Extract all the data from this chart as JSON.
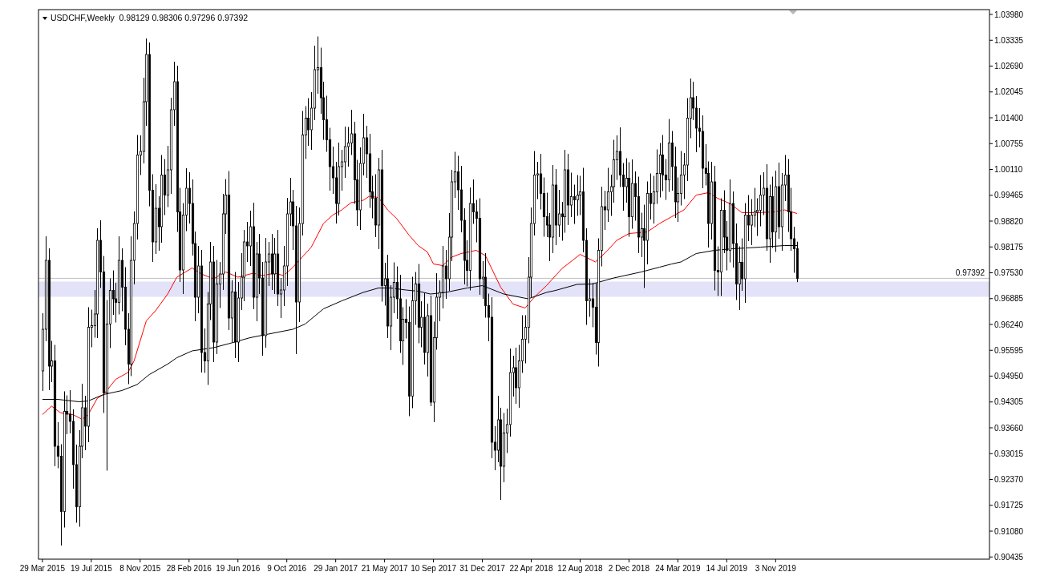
{
  "chart_data": {
    "type": "candlestick",
    "title": "USDCHF,Weekly  0.98129 0.98306 0.97296 0.97392",
    "x": [
      "2015-03-29",
      "2015-04-05",
      "2015-04-12",
      "2015-04-19",
      "2015-04-26",
      "2015-05-03",
      "2015-05-10",
      "2015-05-17",
      "2015-05-24",
      "2015-05-31",
      "2015-06-07",
      "2015-06-14",
      "2015-06-21",
      "2015-06-28",
      "2015-07-05",
      "2015-07-12",
      "2015-07-19",
      "2015-07-26",
      "2015-08-02",
      "2015-08-09",
      "2015-08-16",
      "2015-08-23",
      "2015-08-30",
      "2015-09-06",
      "2015-09-13",
      "2015-09-20",
      "2015-09-27",
      "2015-10-04",
      "2015-10-11",
      "2015-10-18",
      "2015-10-25",
      "2015-11-01",
      "2015-11-08",
      "2015-11-15",
      "2015-11-22",
      "2015-11-29",
      "2015-12-06",
      "2015-12-13",
      "2015-12-20",
      "2015-12-27",
      "2016-01-03",
      "2016-01-10",
      "2016-01-17",
      "2016-01-24",
      "2016-01-31",
      "2016-02-07",
      "2016-02-14",
      "2016-02-21",
      "2016-02-28",
      "2016-03-06",
      "2016-03-13",
      "2016-03-20",
      "2016-03-27",
      "2016-04-03",
      "2016-04-10",
      "2016-04-17",
      "2016-04-24",
      "2016-05-01",
      "2016-05-08",
      "2016-05-15",
      "2016-05-22",
      "2016-05-29",
      "2016-06-05",
      "2016-06-12",
      "2016-06-19",
      "2016-06-26",
      "2016-07-03",
      "2016-07-10",
      "2016-07-17",
      "2016-07-24",
      "2016-07-31",
      "2016-08-07",
      "2016-08-14",
      "2016-08-21",
      "2016-08-28",
      "2016-09-04",
      "2016-09-11",
      "2016-09-18",
      "2016-09-25",
      "2016-10-02",
      "2016-10-09",
      "2016-10-16",
      "2016-10-23",
      "2016-10-30",
      "2016-11-06",
      "2016-11-13",
      "2016-11-20",
      "2016-11-27",
      "2016-12-04",
      "2016-12-11",
      "2016-12-18",
      "2016-12-25",
      "2017-01-01",
      "2017-01-08",
      "2017-01-15",
      "2017-01-22",
      "2017-01-29",
      "2017-02-05",
      "2017-02-12",
      "2017-02-19",
      "2017-02-26",
      "2017-03-05",
      "2017-03-12",
      "2017-03-19",
      "2017-03-26",
      "2017-04-02",
      "2017-04-09",
      "2017-04-16",
      "2017-04-23",
      "2017-04-30",
      "2017-05-07",
      "2017-05-14",
      "2017-05-21",
      "2017-05-28",
      "2017-06-04",
      "2017-06-11",
      "2017-06-18",
      "2017-06-25",
      "2017-07-02",
      "2017-07-09",
      "2017-07-16",
      "2017-07-23",
      "2017-07-30",
      "2017-08-06",
      "2017-08-13",
      "2017-08-20",
      "2017-08-27",
      "2017-09-03",
      "2017-09-10",
      "2017-09-17",
      "2017-09-24",
      "2017-10-01",
      "2017-10-08",
      "2017-10-15",
      "2017-10-22",
      "2017-10-29",
      "2017-11-05",
      "2017-11-12",
      "2017-11-19",
      "2017-11-26",
      "2017-12-03",
      "2017-12-10",
      "2017-12-17",
      "2017-12-24",
      "2017-12-31",
      "2018-01-07",
      "2018-01-14",
      "2018-01-21",
      "2018-01-28",
      "2018-02-04",
      "2018-02-11",
      "2018-02-18",
      "2018-02-25",
      "2018-03-04",
      "2018-03-11",
      "2018-03-18",
      "2018-03-25",
      "2018-04-01",
      "2018-04-08",
      "2018-04-15",
      "2018-04-22",
      "2018-04-29",
      "2018-05-06",
      "2018-05-13",
      "2018-05-20",
      "2018-05-27",
      "2018-06-03",
      "2018-06-10",
      "2018-06-17",
      "2018-06-24",
      "2018-07-01",
      "2018-07-08",
      "2018-07-15",
      "2018-07-22",
      "2018-07-29",
      "2018-08-05",
      "2018-08-12",
      "2018-08-19",
      "2018-08-26",
      "2018-09-02",
      "2018-09-09",
      "2018-09-16",
      "2018-09-23",
      "2018-09-30",
      "2018-10-07",
      "2018-10-14",
      "2018-10-21",
      "2018-10-28",
      "2018-11-04",
      "2018-11-11",
      "2018-11-18",
      "2018-11-25",
      "2018-12-02",
      "2018-12-09",
      "2018-12-16",
      "2018-12-23",
      "2018-12-30",
      "2019-01-06",
      "2019-01-13",
      "2019-01-20",
      "2019-01-27",
      "2019-02-03",
      "2019-02-10",
      "2019-02-17",
      "2019-02-24",
      "2019-03-03",
      "2019-03-10",
      "2019-03-17",
      "2019-03-24",
      "2019-03-31",
      "2019-04-07",
      "2019-04-14",
      "2019-04-21",
      "2019-04-28",
      "2019-05-05",
      "2019-05-12",
      "2019-05-19",
      "2019-05-26",
      "2019-06-02",
      "2019-06-09",
      "2019-06-16",
      "2019-06-23",
      "2019-06-30",
      "2019-07-07",
      "2019-07-14",
      "2019-07-21",
      "2019-07-28",
      "2019-08-04",
      "2019-08-11",
      "2019-08-18",
      "2019-08-25",
      "2019-09-01",
      "2019-09-08",
      "2019-09-15",
      "2019-09-22",
      "2019-09-29",
      "2019-10-06",
      "2019-10-13",
      "2019-10-20",
      "2019-10-27",
      "2019-11-03",
      "2019-11-10",
      "2019-11-17",
      "2019-11-24",
      "2019-12-01",
      "2019-12-08",
      "2019-12-15",
      "2019-12-22"
    ],
    "ohlc": [
      [
        0.9508,
        0.9652,
        0.9458,
        0.9612
      ],
      [
        0.9612,
        0.9844,
        0.9582,
        0.9784
      ],
      [
        0.9784,
        0.9814,
        0.946,
        0.952
      ],
      [
        0.952,
        0.9583,
        0.948,
        0.9533
      ],
      [
        0.9533,
        0.9573,
        0.927,
        0.932
      ],
      [
        0.932,
        0.938,
        0.9265,
        0.9295
      ],
      [
        0.9295,
        0.9325,
        0.9072,
        0.9157
      ],
      [
        0.9157,
        0.9457,
        0.9117,
        0.9407
      ],
      [
        0.9407,
        0.9447,
        0.935,
        0.94
      ],
      [
        0.94,
        0.946,
        0.9352,
        0.9382
      ],
      [
        0.9382,
        0.9412,
        0.9214,
        0.9274
      ],
      [
        0.9274,
        0.9324,
        0.9129,
        0.9169
      ],
      [
        0.9169,
        0.936,
        0.9119,
        0.932
      ],
      [
        0.932,
        0.9476,
        0.929,
        0.9416
      ],
      [
        0.9416,
        0.9446,
        0.931,
        0.937
      ],
      [
        0.937,
        0.9667,
        0.933,
        0.9617
      ],
      [
        0.9617,
        0.9661,
        0.9567,
        0.9621
      ],
      [
        0.9621,
        0.971,
        0.9591,
        0.965
      ],
      [
        0.965,
        0.9864,
        0.959,
        0.9834
      ],
      [
        0.9834,
        0.9884,
        0.9715,
        0.9755
      ],
      [
        0.9755,
        0.9795,
        0.9403,
        0.9453
      ],
      [
        0.9453,
        0.9685,
        0.9259,
        0.9625
      ],
      [
        0.9625,
        0.9739,
        0.9565,
        0.9709
      ],
      [
        0.9709,
        0.9759,
        0.9648,
        0.9688
      ],
      [
        0.9688,
        0.9728,
        0.9629,
        0.9679
      ],
      [
        0.9679,
        0.9844,
        0.9649,
        0.9784
      ],
      [
        0.9784,
        0.9814,
        0.9657,
        0.9717
      ],
      [
        0.9717,
        0.9767,
        0.9572,
        0.9612
      ],
      [
        0.9612,
        0.9652,
        0.9475,
        0.9525
      ],
      [
        0.9525,
        0.9844,
        0.9495,
        0.9784
      ],
      [
        0.9784,
        0.9906,
        0.9724,
        0.9876
      ],
      [
        0.9876,
        1.0097,
        0.9836,
        1.0047
      ],
      [
        1.0047,
        1.0096,
        0.9997,
        1.0056
      ],
      [
        1.0056,
        1.024,
        1.0026,
        1.018
      ],
      [
        1.018,
        1.0338,
        1.012,
        1.0298
      ],
      [
        1.0298,
        1.0328,
        0.9919,
        0.9959
      ],
      [
        0.9959,
        0.9999,
        0.978,
        0.983
      ],
      [
        0.983,
        0.9974,
        0.98,
        0.9914
      ],
      [
        0.9914,
        0.9944,
        0.9808,
        0.9868
      ],
      [
        0.9868,
        1.0047,
        0.9828,
        0.9997
      ],
      [
        0.9997,
        1.0037,
        0.9897,
        0.9947
      ],
      [
        0.9947,
        1.007,
        0.9917,
        1.001
      ],
      [
        1.001,
        1.019,
        0.995,
        1.016
      ],
      [
        1.016,
        1.028,
        1.012,
        1.023
      ],
      [
        1.023,
        1.027,
        0.9855,
        0.9905
      ],
      [
        0.9905,
        0.9965,
        0.973,
        0.976
      ],
      [
        0.976,
        0.9927,
        0.97,
        0.9897
      ],
      [
        0.9897,
        1.0014,
        0.9857,
        0.9964
      ],
      [
        0.9964,
        1.0004,
        0.9876,
        0.9926
      ],
      [
        0.9926,
        0.9986,
        0.9796,
        0.9826
      ],
      [
        0.9826,
        0.9856,
        0.9632,
        0.9692
      ],
      [
        0.9692,
        0.982,
        0.9652,
        0.977
      ],
      [
        0.977,
        0.981,
        0.9504,
        0.9554
      ],
      [
        0.9554,
        0.9614,
        0.9503,
        0.9533
      ],
      [
        0.9533,
        0.9705,
        0.9473,
        0.9675
      ],
      [
        0.9675,
        0.983,
        0.9635,
        0.978
      ],
      [
        0.978,
        0.982,
        0.953,
        0.958
      ],
      [
        0.958,
        0.9785,
        0.955,
        0.9725
      ],
      [
        0.9725,
        0.978,
        0.9665,
        0.975
      ],
      [
        0.975,
        0.995,
        0.971,
        0.99
      ],
      [
        0.99,
        0.9987,
        0.985,
        0.9947
      ],
      [
        0.9947,
        1.0007,
        0.961,
        0.964
      ],
      [
        0.964,
        0.9735,
        0.958,
        0.9705
      ],
      [
        0.9705,
        0.9755,
        0.954,
        0.958
      ],
      [
        0.958,
        0.973,
        0.953,
        0.969
      ],
      [
        0.969,
        0.9802,
        0.966,
        0.9742
      ],
      [
        0.9742,
        0.986,
        0.9682,
        0.983
      ],
      [
        0.983,
        0.988,
        0.978,
        0.982
      ],
      [
        0.982,
        0.9908,
        0.977,
        0.9868
      ],
      [
        0.9868,
        0.9928,
        0.9662,
        0.9692
      ],
      [
        0.9692,
        0.983,
        0.9632,
        0.98
      ],
      [
        0.98,
        0.985,
        0.97,
        0.974
      ],
      [
        0.974,
        0.978,
        0.9546,
        0.9596
      ],
      [
        0.9596,
        0.984,
        0.9566,
        0.978
      ],
      [
        0.978,
        0.983,
        0.972,
        0.98
      ],
      [
        0.98,
        0.985,
        0.971,
        0.975
      ],
      [
        0.975,
        0.984,
        0.97,
        0.98
      ],
      [
        0.98,
        0.986,
        0.967,
        0.97
      ],
      [
        0.97,
        0.974,
        0.964,
        0.971
      ],
      [
        0.971,
        0.982,
        0.967,
        0.977
      ],
      [
        0.977,
        0.994,
        0.972,
        0.99
      ],
      [
        0.99,
        0.999,
        0.987,
        0.993
      ],
      [
        0.993,
        0.996,
        0.981,
        0.987
      ],
      [
        0.987,
        0.992,
        0.955,
        0.968
      ],
      [
        0.968,
        0.9916,
        0.963,
        0.9876
      ],
      [
        0.9876,
        1.0157,
        0.9846,
        1.0097
      ],
      [
        1.0097,
        1.0169,
        1.0037,
        1.0139
      ],
      [
        1.0139,
        1.0189,
        1.007,
        1.011
      ],
      [
        1.011,
        1.0204,
        1.006,
        1.0164
      ],
      [
        1.0164,
        1.032,
        1.0134,
        1.026
      ],
      [
        1.026,
        1.0343,
        1.02,
        1.0265
      ],
      [
        1.0265,
        1.0315,
        1.015,
        1.019
      ],
      [
        1.019,
        1.023,
        1.0085,
        1.0135
      ],
      [
        1.0135,
        1.0195,
        1.0055,
        1.0085
      ],
      [
        1.0085,
        1.0115,
        0.9958,
        1.0018
      ],
      [
        1.0018,
        1.0068,
        0.995,
        0.999
      ],
      [
        0.999,
        1.003,
        0.9876,
        0.9926
      ],
      [
        0.9926,
        1.0078,
        0.9896,
        1.0018
      ],
      [
        1.0018,
        1.006,
        0.9958,
        1.003
      ],
      [
        1.003,
        1.0118,
        0.999,
        1.0068
      ],
      [
        1.0068,
        1.0117,
        1.0018,
        1.0077
      ],
      [
        1.0077,
        1.016,
        1.0047,
        1.01
      ],
      [
        1.01,
        1.013,
        0.9925,
        0.9985
      ],
      [
        0.9985,
        1.0035,
        0.987,
        0.991
      ],
      [
        0.991,
        1.0066,
        0.986,
        1.0026
      ],
      [
        1.0026,
        1.015,
        0.9996,
        1.009
      ],
      [
        1.009,
        1.012,
        0.999,
        1.005
      ],
      [
        1.005,
        1.01,
        0.9915,
        0.9955
      ],
      [
        0.9955,
        0.9995,
        0.9889,
        0.9939
      ],
      [
        0.9939,
        0.9999,
        0.9842,
        0.9872
      ],
      [
        0.9872,
        1.004,
        0.9812,
        1.001
      ],
      [
        1.001,
        1.006,
        0.9681,
        0.9721
      ],
      [
        0.9721,
        0.9778,
        0.9671,
        0.9738
      ],
      [
        0.9738,
        0.9798,
        0.959,
        0.962
      ],
      [
        0.962,
        0.9722,
        0.956,
        0.9692
      ],
      [
        0.9692,
        0.9779,
        0.9652,
        0.9729
      ],
      [
        0.9729,
        0.9769,
        0.9638,
        0.9688
      ],
      [
        0.9688,
        0.9748,
        0.9553,
        0.9583
      ],
      [
        0.9583,
        0.9667,
        0.9523,
        0.9637
      ],
      [
        0.9637,
        0.9687,
        0.9589,
        0.9629
      ],
      [
        0.9629,
        0.9669,
        0.9395,
        0.9445
      ],
      [
        0.9445,
        0.9743,
        0.9415,
        0.9683
      ],
      [
        0.9683,
        0.9755,
        0.9623,
        0.9725
      ],
      [
        0.9725,
        0.9775,
        0.9577,
        0.9617
      ],
      [
        0.9617,
        0.9682,
        0.9567,
        0.9642
      ],
      [
        0.9642,
        0.9702,
        0.9524,
        0.9554
      ],
      [
        0.9554,
        0.9676,
        0.9494,
        0.9646
      ],
      [
        0.9646,
        0.9696,
        0.942,
        0.943
      ],
      [
        0.943,
        0.9631,
        0.938,
        0.9591
      ],
      [
        0.9591,
        0.9752,
        0.9561,
        0.9692
      ],
      [
        0.9692,
        0.9734,
        0.9632,
        0.9704
      ],
      [
        0.9704,
        0.982,
        0.9664,
        0.977
      ],
      [
        0.977,
        0.981,
        0.9688,
        0.9738
      ],
      [
        0.9738,
        0.9902,
        0.9708,
        0.9842
      ],
      [
        0.9842,
        1.001,
        0.9782,
        0.998
      ],
      [
        0.998,
        1.0055,
        0.994,
        1.0005
      ],
      [
        1.0005,
        1.0045,
        0.991,
        0.996
      ],
      [
        0.996,
        1.002,
        0.9854,
        0.9884
      ],
      [
        0.9884,
        0.9914,
        0.9724,
        0.9784
      ],
      [
        0.9784,
        0.9834,
        0.9719,
        0.9759
      ],
      [
        0.9759,
        0.9966,
        0.9709,
        0.9926
      ],
      [
        0.9926,
        0.9986,
        0.9875,
        0.9905
      ],
      [
        0.9905,
        0.9935,
        0.9829,
        0.9889
      ],
      [
        0.9889,
        0.9939,
        0.9698,
        0.9738
      ],
      [
        0.9738,
        0.9782,
        0.9688,
        0.9742
      ],
      [
        0.9742,
        0.9802,
        0.9641,
        0.9671
      ],
      [
        0.9671,
        0.9701,
        0.9582,
        0.9642
      ],
      [
        0.9642,
        0.9692,
        0.929,
        0.933
      ],
      [
        0.933,
        0.937,
        0.926,
        0.931
      ],
      [
        0.931,
        0.9446,
        0.928,
        0.9386
      ],
      [
        0.9386,
        0.9416,
        0.9186,
        0.927
      ],
      [
        0.927,
        0.9403,
        0.923,
        0.9353
      ],
      [
        0.9353,
        0.9414,
        0.9303,
        0.9374
      ],
      [
        0.9374,
        0.9564,
        0.9344,
        0.9504
      ],
      [
        0.9504,
        0.9546,
        0.9444,
        0.9516
      ],
      [
        0.9516,
        0.9566,
        0.9426,
        0.9466
      ],
      [
        0.9466,
        0.9573,
        0.9416,
        0.9533
      ],
      [
        0.9533,
        0.9647,
        0.9503,
        0.9587
      ],
      [
        0.9587,
        0.9647,
        0.9527,
        0.9617
      ],
      [
        0.9617,
        0.9792,
        0.9577,
        0.9742
      ],
      [
        0.9742,
        0.9916,
        0.9692,
        0.9876
      ],
      [
        0.9876,
        1.0057,
        0.9846,
        0.9997
      ],
      [
        0.9997,
        1.003,
        0.9937,
        1.0
      ],
      [
        1.0,
        1.005,
        0.9911,
        0.9951
      ],
      [
        0.9951,
        0.9991,
        0.9843,
        0.9893
      ],
      [
        0.9893,
        0.9953,
        0.9842,
        0.9872
      ],
      [
        0.9872,
        0.9902,
        0.9782,
        0.9842
      ],
      [
        0.9842,
        1.0022,
        0.9802,
        0.9972
      ],
      [
        0.9972,
        1.0012,
        0.9822,
        0.9872
      ],
      [
        0.9872,
        0.996,
        0.9842,
        0.99
      ],
      [
        0.99,
        0.993,
        0.9833,
        0.9893
      ],
      [
        0.9893,
        1.006,
        0.9853,
        1.001
      ],
      [
        1.001,
        1.005,
        0.9872,
        0.9922
      ],
      [
        0.9922,
        1.0003,
        0.9892,
        0.9943
      ],
      [
        0.9943,
        0.9973,
        0.9875,
        0.9935
      ],
      [
        0.9935,
        0.9997,
        0.9895,
        0.9947
      ],
      [
        0.9947,
        0.9995,
        0.9897,
        0.9955
      ],
      [
        0.9955,
        1.0015,
        0.9804,
        0.9834
      ],
      [
        0.9834,
        0.9864,
        0.9623,
        0.9683
      ],
      [
        0.9683,
        0.9738,
        0.9643,
        0.9688
      ],
      [
        0.9688,
        0.9728,
        0.9617,
        0.9667
      ],
      [
        0.9667,
        0.9727,
        0.9549,
        0.9579
      ],
      [
        0.9579,
        0.9839,
        0.9519,
        0.9809
      ],
      [
        0.9809,
        0.9968,
        0.9769,
        0.9918
      ],
      [
        0.9918,
        0.9958,
        0.986,
        0.991
      ],
      [
        0.991,
        1.0015,
        0.988,
        0.9955
      ],
      [
        0.9955,
        0.9998,
        0.9895,
        0.9968
      ],
      [
        0.9968,
        1.0085,
        0.9928,
        1.0035
      ],
      [
        1.0035,
        1.0096,
        0.9985,
        1.0056
      ],
      [
        1.0056,
        1.0116,
        0.9967,
        0.9997
      ],
      [
        0.9997,
        1.0027,
        0.9908,
        0.9968
      ],
      [
        0.9968,
        1.0039,
        0.9928,
        0.9989
      ],
      [
        0.9989,
        1.0029,
        0.9843,
        0.9893
      ],
      [
        0.9893,
        1.0036,
        0.9863,
        0.9976
      ],
      [
        0.9976,
        1.0006,
        0.9883,
        0.9943
      ],
      [
        0.9943,
        0.9993,
        0.9802,
        0.9842
      ],
      [
        0.9842,
        0.9903,
        0.9792,
        0.9863
      ],
      [
        0.9863,
        0.9923,
        0.9715,
        0.9834
      ],
      [
        0.9834,
        0.9981,
        0.9774,
        0.9951
      ],
      [
        0.9951,
        1.0001,
        0.9886,
        0.9926
      ],
      [
        0.9926,
        0.9995,
        0.9876,
        0.9955
      ],
      [
        0.9955,
        1.0061,
        0.9925,
        1.0001
      ],
      [
        1.0001,
        1.0077,
        0.9941,
        1.0047
      ],
      [
        1.0047,
        1.0097,
        0.9957,
        0.9997
      ],
      [
        0.9997,
        1.0037,
        0.9935,
        0.9985
      ],
      [
        0.9985,
        1.0137,
        0.9955,
        1.0077
      ],
      [
        1.0077,
        1.0107,
        0.9958,
        1.0018
      ],
      [
        1.0018,
        1.0068,
        0.989,
        0.993
      ],
      [
        0.993,
        0.9991,
        0.988,
        0.9951
      ],
      [
        0.9951,
        1.0057,
        0.9921,
        0.9997
      ],
      [
        0.9997,
        1.0052,
        0.9937,
        1.0022
      ],
      [
        1.0022,
        1.0189,
        0.9982,
        1.0139
      ],
      [
        1.0139,
        1.0238,
        1.0089,
        1.019
      ],
      [
        1.019,
        1.023,
        1.0134,
        1.0164
      ],
      [
        1.0164,
        1.0194,
        1.0054,
        1.0114
      ],
      [
        1.0114,
        1.0164,
        1.0066,
        1.0106
      ],
      [
        1.0106,
        1.0146,
        0.9964,
        1.0014
      ],
      [
        1.0014,
        1.0074,
        0.9971,
        1.0001
      ],
      [
        1.0001,
        1.0031,
        0.9816,
        0.9876
      ],
      [
        0.9876,
        1.003,
        0.9836,
        0.998
      ],
      [
        0.998,
        1.002,
        0.9709,
        0.9759
      ],
      [
        0.9759,
        0.9819,
        0.9695,
        0.9755
      ],
      [
        0.9755,
        0.9939,
        0.9695,
        0.9909
      ],
      [
        0.9909,
        0.9959,
        0.9802,
        0.9842
      ],
      [
        0.9842,
        0.9882,
        0.9759,
        0.9809
      ],
      [
        0.9809,
        0.9986,
        0.9779,
        0.9926
      ],
      [
        0.9926,
        0.9956,
        0.9766,
        0.9826
      ],
      [
        0.9826,
        0.9876,
        0.9685,
        0.9725
      ],
      [
        0.9725,
        0.9819,
        0.966,
        0.9779
      ],
      [
        0.9779,
        0.9839,
        0.9708,
        0.9738
      ],
      [
        0.9738,
        0.9927,
        0.9678,
        0.9897
      ],
      [
        0.9897,
        0.9947,
        0.9832,
        0.9872
      ],
      [
        0.9872,
        0.9937,
        0.9822,
        0.9897
      ],
      [
        0.9897,
        0.9965,
        0.9867,
        0.9905
      ],
      [
        0.9905,
        0.9939,
        0.9845,
        0.9909
      ],
      [
        0.9909,
        0.9997,
        0.9869,
        0.9947
      ],
      [
        0.9947,
        1.0004,
        0.9897,
        0.9964
      ],
      [
        0.9964,
        1.0024,
        0.9808,
        0.9838
      ],
      [
        0.9838,
        0.9973,
        0.9778,
        0.9943
      ],
      [
        0.9943,
        0.9993,
        0.9815,
        0.9855
      ],
      [
        0.9855,
        1.0008,
        0.9805,
        0.9968
      ],
      [
        0.9968,
        1.0028,
        0.9838,
        0.9868
      ],
      [
        0.9868,
        1.0002,
        0.9808,
        0.9972
      ],
      [
        0.9972,
        1.0047,
        0.9932,
        0.9997
      ],
      [
        0.9997,
        1.0037,
        0.9855,
        0.9905
      ],
      [
        0.9905,
        0.9965,
        0.9808,
        0.9838
      ],
      [
        0.9838,
        0.9868,
        0.9753,
        0.98129
      ],
      [
        0.98129,
        0.98306,
        0.97296,
        0.97392
      ]
    ],
    "series": [
      {
        "type": "line",
        "color": "#ff0000",
        "x": [
          "2015-03-29",
          "2015-04-19",
          "2015-05-10",
          "2015-06-07",
          "2015-06-28",
          "2015-07-12",
          "2015-08-02",
          "2015-08-16",
          "2015-09-13",
          "2015-10-11",
          "2015-10-25",
          "2015-11-22",
          "2015-12-13",
          "2016-01-10",
          "2016-01-31",
          "2016-03-06",
          "2016-03-27",
          "2016-04-24",
          "2016-05-22",
          "2016-06-19",
          "2016-07-24",
          "2016-08-14",
          "2016-09-11",
          "2016-10-02",
          "2016-10-23",
          "2016-12-04",
          "2017-01-01",
          "2017-01-22",
          "2017-02-12",
          "2017-03-05",
          "2017-04-02",
          "2017-04-16",
          "2017-05-07",
          "2017-05-28",
          "2017-06-18",
          "2017-07-16",
          "2017-08-06",
          "2017-08-27",
          "2017-09-10",
          "2017-10-01",
          "2017-10-22",
          "2017-11-12",
          "2017-12-17",
          "2018-01-07",
          "2018-02-11",
          "2018-03-11",
          "2018-04-08",
          "2018-04-29",
          "2018-05-27",
          "2018-07-01",
          "2018-08-12",
          "2018-09-16",
          "2018-10-14",
          "2018-11-04",
          "2018-12-02",
          "2019-01-13",
          "2019-02-10",
          "2019-03-10",
          "2019-04-07",
          "2019-05-05",
          "2019-06-02",
          "2019-06-23",
          "2019-07-21",
          "2019-08-18",
          "2019-09-22",
          "2019-10-30",
          "2019-11-24",
          "2019-12-22"
        ],
        "values": [
          0.9399,
          0.942,
          0.9403,
          0.9399,
          0.9387,
          0.9399,
          0.944,
          0.9449,
          0.9487,
          0.9504,
          0.9533,
          0.9633,
          0.9658,
          0.97,
          0.9742,
          0.9765,
          0.975,
          0.9738,
          0.9755,
          0.9742,
          0.9752,
          0.9746,
          0.9752,
          0.9746,
          0.9767,
          0.9817,
          0.9876,
          0.9897,
          0.991,
          0.9928,
          0.9934,
          0.9944,
          0.9941,
          0.991,
          0.9888,
          0.9847,
          0.9821,
          0.9805,
          0.9775,
          0.9771,
          0.9792,
          0.9801,
          0.9809,
          0.9796,
          0.9717,
          0.9675,
          0.9665,
          0.9692,
          0.9721,
          0.9763,
          0.9799,
          0.978,
          0.9809,
          0.9834,
          0.9851,
          0.9855,
          0.9876,
          0.9893,
          0.991,
          0.9947,
          0.9953,
          0.9939,
          0.9926,
          0.9903,
          0.9903,
          0.9905,
          0.991,
          0.9901
        ]
      },
      {
        "type": "line",
        "color": "#000000",
        "x": [
          "2015-03-29",
          "2015-05-03",
          "2015-06-21",
          "2015-07-12",
          "2015-08-16",
          "2015-09-27",
          "2015-11-01",
          "2015-11-29",
          "2016-01-10",
          "2016-01-31",
          "2016-03-06",
          "2016-04-24",
          "2016-05-29",
          "2016-07-17",
          "2016-08-28",
          "2016-10-23",
          "2016-11-20",
          "2017-01-01",
          "2017-02-12",
          "2017-04-02",
          "2017-05-07",
          "2017-06-04",
          "2017-07-09",
          "2017-08-06",
          "2017-09-03",
          "2017-10-08",
          "2017-11-26",
          "2017-12-31",
          "2018-02-18",
          "2018-04-15",
          "2018-05-27",
          "2018-06-17",
          "2018-08-05",
          "2018-09-09",
          "2018-10-28",
          "2018-12-30",
          "2019-02-10",
          "2019-03-10",
          "2019-03-31",
          "2019-05-05",
          "2019-06-16",
          "2019-07-28",
          "2019-09-29",
          "2019-11-24",
          "2019-12-22"
        ],
        "values": [
          0.9437,
          0.9437,
          0.9431,
          0.9433,
          0.9449,
          0.9459,
          0.9474,
          0.9499,
          0.9525,
          0.9541,
          0.9558,
          0.9566,
          0.9576,
          0.9591,
          0.96,
          0.9612,
          0.9625,
          0.9663,
          0.9683,
          0.9704,
          0.9715,
          0.9715,
          0.971,
          0.9707,
          0.97,
          0.9704,
          0.9715,
          0.9721,
          0.97,
          0.9688,
          0.9704,
          0.9709,
          0.9724,
          0.9725,
          0.974,
          0.9755,
          0.9767,
          0.9775,
          0.978,
          0.9801,
          0.9809,
          0.9813,
          0.9817,
          0.9821,
          0.9821
        ]
      }
    ],
    "xlim": [
      "2015-03-20",
      "2021-03-07"
    ],
    "xticks": [
      {
        "value": "2015-03-29",
        "label": "29 Mar 2015"
      },
      {
        "value": "2015-07-19",
        "label": "19 Jul 2015"
      },
      {
        "value": "2015-11-08",
        "label": "8 Nov 2015"
      },
      {
        "value": "2016-02-28",
        "label": "28 Feb 2016"
      },
      {
        "value": "2016-06-19",
        "label": "19 Jun 2016"
      },
      {
        "value": "2016-10-09",
        "label": "9 Oct 2016"
      },
      {
        "value": "2017-01-29",
        "label": "29 Jan 2017"
      },
      {
        "value": "2017-05-21",
        "label": "21 May 2017"
      },
      {
        "value": "2017-09-10",
        "label": "10 Sep 2017"
      },
      {
        "value": "2017-12-31",
        "label": "31 Dec 2017"
      },
      {
        "value": "2018-04-22",
        "label": "22 Apr 2018"
      },
      {
        "value": "2018-08-12",
        "label": "12 Aug 2018"
      },
      {
        "value": "2018-12-02",
        "label": "2 Dec 2018"
      },
      {
        "value": "2019-03-24",
        "label": "24 Mar 2019"
      },
      {
        "value": "2019-07-14",
        "label": "14 Jul 2019"
      },
      {
        "value": "2019-11-03",
        "label": "3 Nov 2019"
      }
    ],
    "ylim": [
      0.9038,
      1.041
    ],
    "yticks": [
      {
        "value": 1.0398,
        "label": "1.03980"
      },
      1.03335,
      {
        "value": 1.0269,
        "label": "1.02690"
      },
      1.02045,
      {
        "value": 1.014,
        "label": "1.01400"
      },
      1.00755,
      {
        "value": 1.0011,
        "label": "1.00110"
      },
      0.99465,
      {
        "value": 0.9882,
        "label": "0.98820"
      },
      0.98175,
      {
        "value": 0.9753,
        "label": "0.97530"
      },
      0.96885,
      {
        "value": 0.9624,
        "label": "0.96240"
      },
      0.95595,
      {
        "value": 0.9495,
        "label": "0.94950"
      },
      0.94305,
      {
        "value": 0.9366,
        "label": "0.93660"
      },
      0.93015,
      {
        "value": 0.9237,
        "label": "0.92370"
      },
      0.91725,
      {
        "value": 0.9108,
        "label": "0.91080"
      },
      0.90435
    ],
    "ref_lines": [
      {
        "axis": "y",
        "value": 0.97392,
        "label": "0.97392",
        "color": "#c0c0c0"
      }
    ],
    "bands": [
      {
        "axis": "y",
        "from": 0.9693,
        "to": 0.9731,
        "color": "#e2e2f8"
      }
    ]
  }
}
